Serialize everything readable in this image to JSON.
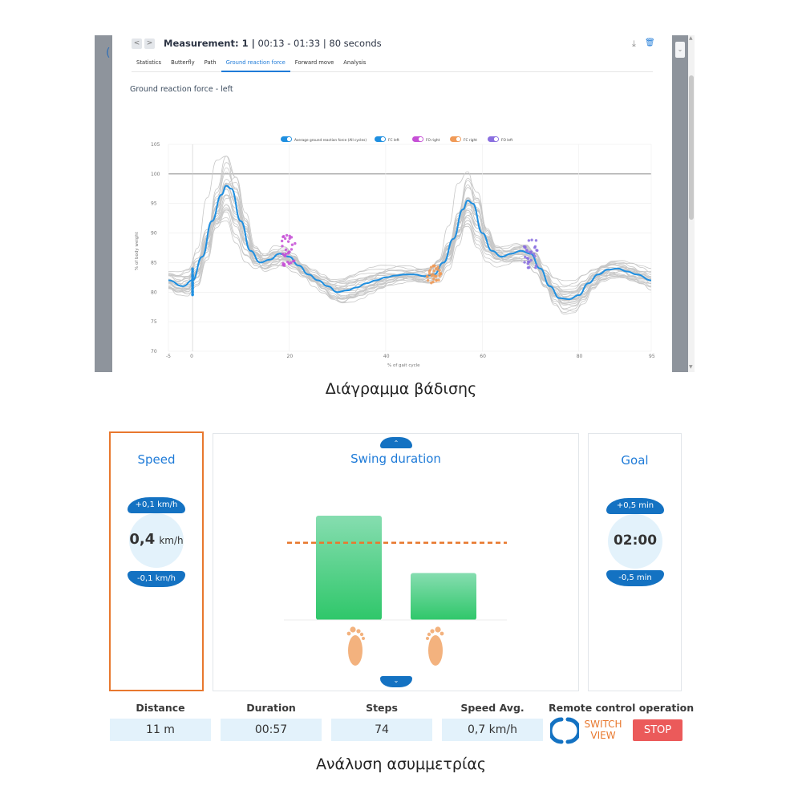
{
  "measurement": {
    "title_bold": "Measurement: 1 |",
    "title_rest": " 00:13 - 01:33 | 80 seconds",
    "prev_label": "<",
    "next_label": ">",
    "download_icon": "download-icon",
    "delete_icon": "trash-icon"
  },
  "tabs": [
    {
      "label": "Statistics",
      "active": false
    },
    {
      "label": "Butterfly",
      "active": false
    },
    {
      "label": "Path",
      "active": false
    },
    {
      "label": "Ground reaction force",
      "active": true
    },
    {
      "label": "Forward move",
      "active": false
    },
    {
      "label": "Analysis",
      "active": false
    }
  ],
  "chart_title": "Ground reaction force - left",
  "chart_data": {
    "type": "line",
    "xlabel": "% of gait cycle",
    "ylabel": "% of body weight",
    "xlim": [
      -5,
      95
    ],
    "ylim": [
      70,
      105
    ],
    "xticks": [
      -5,
      0,
      20,
      40,
      60,
      80,
      95
    ],
    "yticks": [
      70,
      75,
      80,
      85,
      90,
      95,
      100,
      105
    ],
    "reference_line": 100,
    "legend": [
      {
        "name": "Average ground reaction force (All cycles)",
        "color": "#1f8fe0"
      },
      {
        "name": "FC left",
        "color": "#1f8fe0"
      },
      {
        "name": "FO right",
        "color": "#c64fd6"
      },
      {
        "name": "FC right",
        "color": "#f09a57"
      },
      {
        "name": "FO left",
        "color": "#8a6fe0"
      }
    ],
    "series": [
      {
        "name": "Average ground reaction force (All cycles)",
        "x": [
          -5,
          -2,
          0,
          2,
          4,
          6,
          7,
          8,
          10,
          12,
          14,
          16,
          18,
          20,
          22,
          24,
          26,
          28,
          30,
          32,
          34,
          36,
          38,
          40,
          42,
          44,
          46,
          48,
          50,
          52,
          54,
          56,
          57,
          58,
          60,
          62,
          64,
          66,
          68,
          70,
          72,
          74,
          76,
          78,
          80,
          82,
          84,
          86,
          88,
          90,
          92,
          95
        ],
        "y": [
          82,
          81,
          82,
          86,
          92,
          96.5,
          98,
          97.5,
          92,
          87,
          85,
          85.5,
          86.5,
          86,
          84.5,
          83,
          82,
          81,
          80,
          80.3,
          80.8,
          81.5,
          82,
          82.5,
          82.8,
          83,
          83,
          82.7,
          83,
          85,
          89,
          94,
          95.5,
          95,
          90,
          87,
          86,
          86.5,
          87,
          86.5,
          84,
          81,
          79,
          78.8,
          79.5,
          81.5,
          83,
          83.8,
          84,
          83.5,
          83,
          82
        ]
      }
    ],
    "event_markers": [
      {
        "name": "FC left",
        "x_center": 0,
        "y_range": [
          79.5,
          84
        ]
      },
      {
        "name": "FO right",
        "x_center": 20,
        "y_range": [
          84.5,
          90
        ]
      },
      {
        "name": "FC right",
        "x_center": 50,
        "y_range": [
          81.5,
          84.5
        ]
      },
      {
        "name": "FO left",
        "x_center": 70,
        "y_range": [
          84,
          89
        ]
      }
    ]
  },
  "caption_top": "Διάγραμμα βάδισης",
  "speed": {
    "title": "Speed",
    "inc_label": "+0,1 km/h",
    "value": "0,4",
    "unit": "km/h",
    "dec_label": "-0,1 km/h"
  },
  "swing": {
    "title": "Swing duration",
    "up_icon": "^",
    "down_icon": "v",
    "bars": [
      {
        "side": "left",
        "relative_height": 1.0
      },
      {
        "side": "right",
        "relative_height": 0.45
      }
    ],
    "target_relative_height": 0.74,
    "bar_color": "#2fc76a",
    "target_color": "#e8782e",
    "foot_icons": [
      "left-foot-icon",
      "right-foot-icon"
    ]
  },
  "goal": {
    "title": "Goal",
    "inc_label": "+0,5 min",
    "value": "02:00",
    "dec_label": "-0,5 min"
  },
  "stats": [
    {
      "label": "Distance",
      "value": "11 m"
    },
    {
      "label": "Duration",
      "value": "00:57"
    },
    {
      "label": "Steps",
      "value": "74"
    },
    {
      "label": "Speed Avg.",
      "value": "0,7 km/h"
    }
  ],
  "remote": {
    "label": "Remote control operation",
    "switch_line1": "SWITCH",
    "switch_line2": "VIEW",
    "stop_label": "STOP"
  },
  "caption_bottom": "Ανάλυση ασυμμετρίας",
  "colors": {
    "accent": "#1472c2",
    "highlight_border": "#e8782e",
    "stop": "#eb5a5a"
  }
}
